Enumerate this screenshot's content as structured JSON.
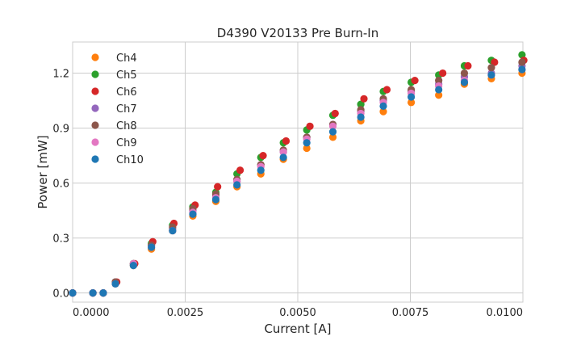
{
  "chart_data": {
    "type": "scatter",
    "title": "D4390 V20133 Pre Burn-In",
    "xlabel": "Current [A]",
    "ylabel": "Power [mW]",
    "xlim": [
      0.0,
      0.01
    ],
    "ylim": [
      -0.05,
      1.37
    ],
    "xticks": [
      0.0,
      0.0025,
      0.005,
      0.0075,
      0.01
    ],
    "xtick_labels": [
      "0.0000",
      "0.0025",
      "0.0050",
      "0.0075",
      "0.0100"
    ],
    "yticks": [
      0.0,
      0.3,
      0.6,
      0.9,
      1.2
    ],
    "ytick_labels": [
      "0.0",
      "0.3",
      "0.6",
      "0.9",
      "1.2"
    ],
    "grid": true,
    "legend_position": "top-left",
    "series": [
      {
        "name": "Ch4",
        "color": "#ff7f0e",
        "x": [
          0.0,
          0.00045,
          0.00068,
          0.00095,
          0.00135,
          0.00175,
          0.00222,
          0.00267,
          0.00318,
          0.00365,
          0.00418,
          0.00468,
          0.0052,
          0.00578,
          0.0064,
          0.0069,
          0.00752,
          0.00813,
          0.0087,
          0.0093,
          0.00998
        ],
        "y": [
          0.0,
          0.0,
          0.0,
          0.05,
          0.15,
          0.24,
          0.34,
          0.42,
          0.5,
          0.58,
          0.65,
          0.73,
          0.79,
          0.85,
          0.94,
          0.99,
          1.04,
          1.08,
          1.14,
          1.17,
          1.2
        ]
      },
      {
        "name": "Ch5",
        "color": "#2ca02c",
        "x": [
          0.0,
          0.00045,
          0.00068,
          0.00095,
          0.00135,
          0.00175,
          0.00222,
          0.00267,
          0.00318,
          0.00365,
          0.00418,
          0.00468,
          0.0052,
          0.00578,
          0.0064,
          0.0069,
          0.00752,
          0.00813,
          0.0087,
          0.0093,
          0.00998
        ],
        "y": [
          0.0,
          0.0,
          0.0,
          0.06,
          0.16,
          0.27,
          0.37,
          0.47,
          0.55,
          0.65,
          0.74,
          0.82,
          0.89,
          0.97,
          1.03,
          1.1,
          1.15,
          1.19,
          1.24,
          1.27,
          1.3
        ]
      },
      {
        "name": "Ch6",
        "color": "#d62728",
        "x": [
          0.0,
          0.00045,
          0.00068,
          0.00098,
          0.00138,
          0.00178,
          0.00225,
          0.00272,
          0.00322,
          0.00372,
          0.00423,
          0.00474,
          0.00527,
          0.00583,
          0.00647,
          0.00698,
          0.0076,
          0.00822,
          0.00878,
          0.00937,
          0.01002
        ],
        "y": [
          0.0,
          0.0,
          0.0,
          0.06,
          0.16,
          0.28,
          0.38,
          0.48,
          0.58,
          0.67,
          0.75,
          0.83,
          0.91,
          0.98,
          1.06,
          1.11,
          1.16,
          1.2,
          1.24,
          1.26,
          1.27
        ]
      },
      {
        "name": "Ch7",
        "color": "#9467bd",
        "x": [
          0.0,
          0.00045,
          0.00068,
          0.00095,
          0.00135,
          0.00175,
          0.00222,
          0.00267,
          0.00318,
          0.00365,
          0.00418,
          0.00468,
          0.0052,
          0.00578,
          0.0064,
          0.0069,
          0.00752,
          0.00813,
          0.0087,
          0.0093,
          0.00998
        ],
        "y": [
          0.0,
          0.0,
          0.0,
          0.06,
          0.16,
          0.26,
          0.35,
          0.45,
          0.53,
          0.61,
          0.7,
          0.77,
          0.85,
          0.92,
          0.99,
          1.05,
          1.1,
          1.14,
          1.18,
          1.2,
          1.24
        ]
      },
      {
        "name": "Ch8",
        "color": "#8c564b",
        "x": [
          0.0,
          0.00045,
          0.00068,
          0.00095,
          0.00135,
          0.00175,
          0.00222,
          0.00267,
          0.00318,
          0.00365,
          0.00418,
          0.00468,
          0.0052,
          0.00578,
          0.0064,
          0.0069,
          0.00752,
          0.00813,
          0.0087,
          0.0093,
          0.00998
        ],
        "y": [
          0.0,
          0.0,
          0.0,
          0.06,
          0.16,
          0.26,
          0.36,
          0.46,
          0.54,
          0.62,
          0.7,
          0.78,
          0.85,
          0.92,
          1.0,
          1.06,
          1.11,
          1.16,
          1.2,
          1.23,
          1.26
        ]
      },
      {
        "name": "Ch9",
        "color": "#e377c2",
        "x": [
          0.0,
          0.00045,
          0.00068,
          0.00095,
          0.00135,
          0.00175,
          0.00222,
          0.00267,
          0.00318,
          0.00365,
          0.00418,
          0.00468,
          0.0052,
          0.00578,
          0.0064,
          0.0069,
          0.00752,
          0.00813,
          0.0087,
          0.0093,
          0.00998
        ],
        "y": [
          0.0,
          0.0,
          0.0,
          0.05,
          0.16,
          0.25,
          0.34,
          0.44,
          0.52,
          0.61,
          0.69,
          0.77,
          0.84,
          0.91,
          0.98,
          1.04,
          1.09,
          1.13,
          1.16,
          1.19,
          1.22
        ]
      },
      {
        "name": "Ch10",
        "color": "#1f77b4",
        "x": [
          0.0,
          0.00045,
          0.00068,
          0.00095,
          0.00135,
          0.00175,
          0.00222,
          0.00267,
          0.00318,
          0.00365,
          0.00418,
          0.00468,
          0.0052,
          0.00578,
          0.0064,
          0.0069,
          0.00752,
          0.00813,
          0.0087,
          0.0093,
          0.00998
        ],
        "y": [
          0.0,
          0.0,
          0.0,
          0.05,
          0.15,
          0.25,
          0.34,
          0.43,
          0.51,
          0.59,
          0.67,
          0.74,
          0.82,
          0.88,
          0.96,
          1.02,
          1.07,
          1.11,
          1.15,
          1.19,
          1.22
        ]
      }
    ]
  }
}
